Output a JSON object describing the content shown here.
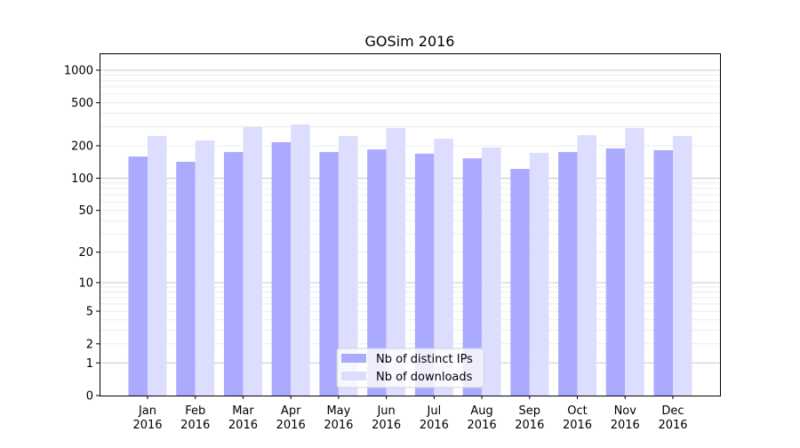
{
  "chart_data": {
    "type": "bar",
    "title": "GOSim 2016",
    "xlabel": "",
    "ylabel": "",
    "yscale": "symlog (log10(1+y))",
    "ylim": [
      0,
      1400
    ],
    "yticks": [
      0,
      1,
      2,
      5,
      10,
      20,
      50,
      100,
      200,
      500,
      1000
    ],
    "grid": true,
    "legend_position": "bottom-center",
    "categories": [
      "Jan\n2016",
      "Feb\n2016",
      "Mar\n2016",
      "Apr\n2016",
      "May\n2016",
      "Jun\n2016",
      "Jul\n2016",
      "Aug\n2016",
      "Sep\n2016",
      "Oct\n2016",
      "Nov\n2016",
      "Dec\n2016"
    ],
    "series": [
      {
        "name": "Nb of distinct IPs",
        "color": "#aaaaff",
        "values": [
          159,
          142,
          175,
          216,
          175,
          185,
          169,
          153,
          122,
          175,
          189,
          182
        ]
      },
      {
        "name": "Nb of downloads",
        "color": "#ddddff",
        "values": [
          246,
          224,
          298,
          315,
          246,
          292,
          233,
          193,
          172,
          251,
          292,
          246
        ]
      }
    ]
  }
}
